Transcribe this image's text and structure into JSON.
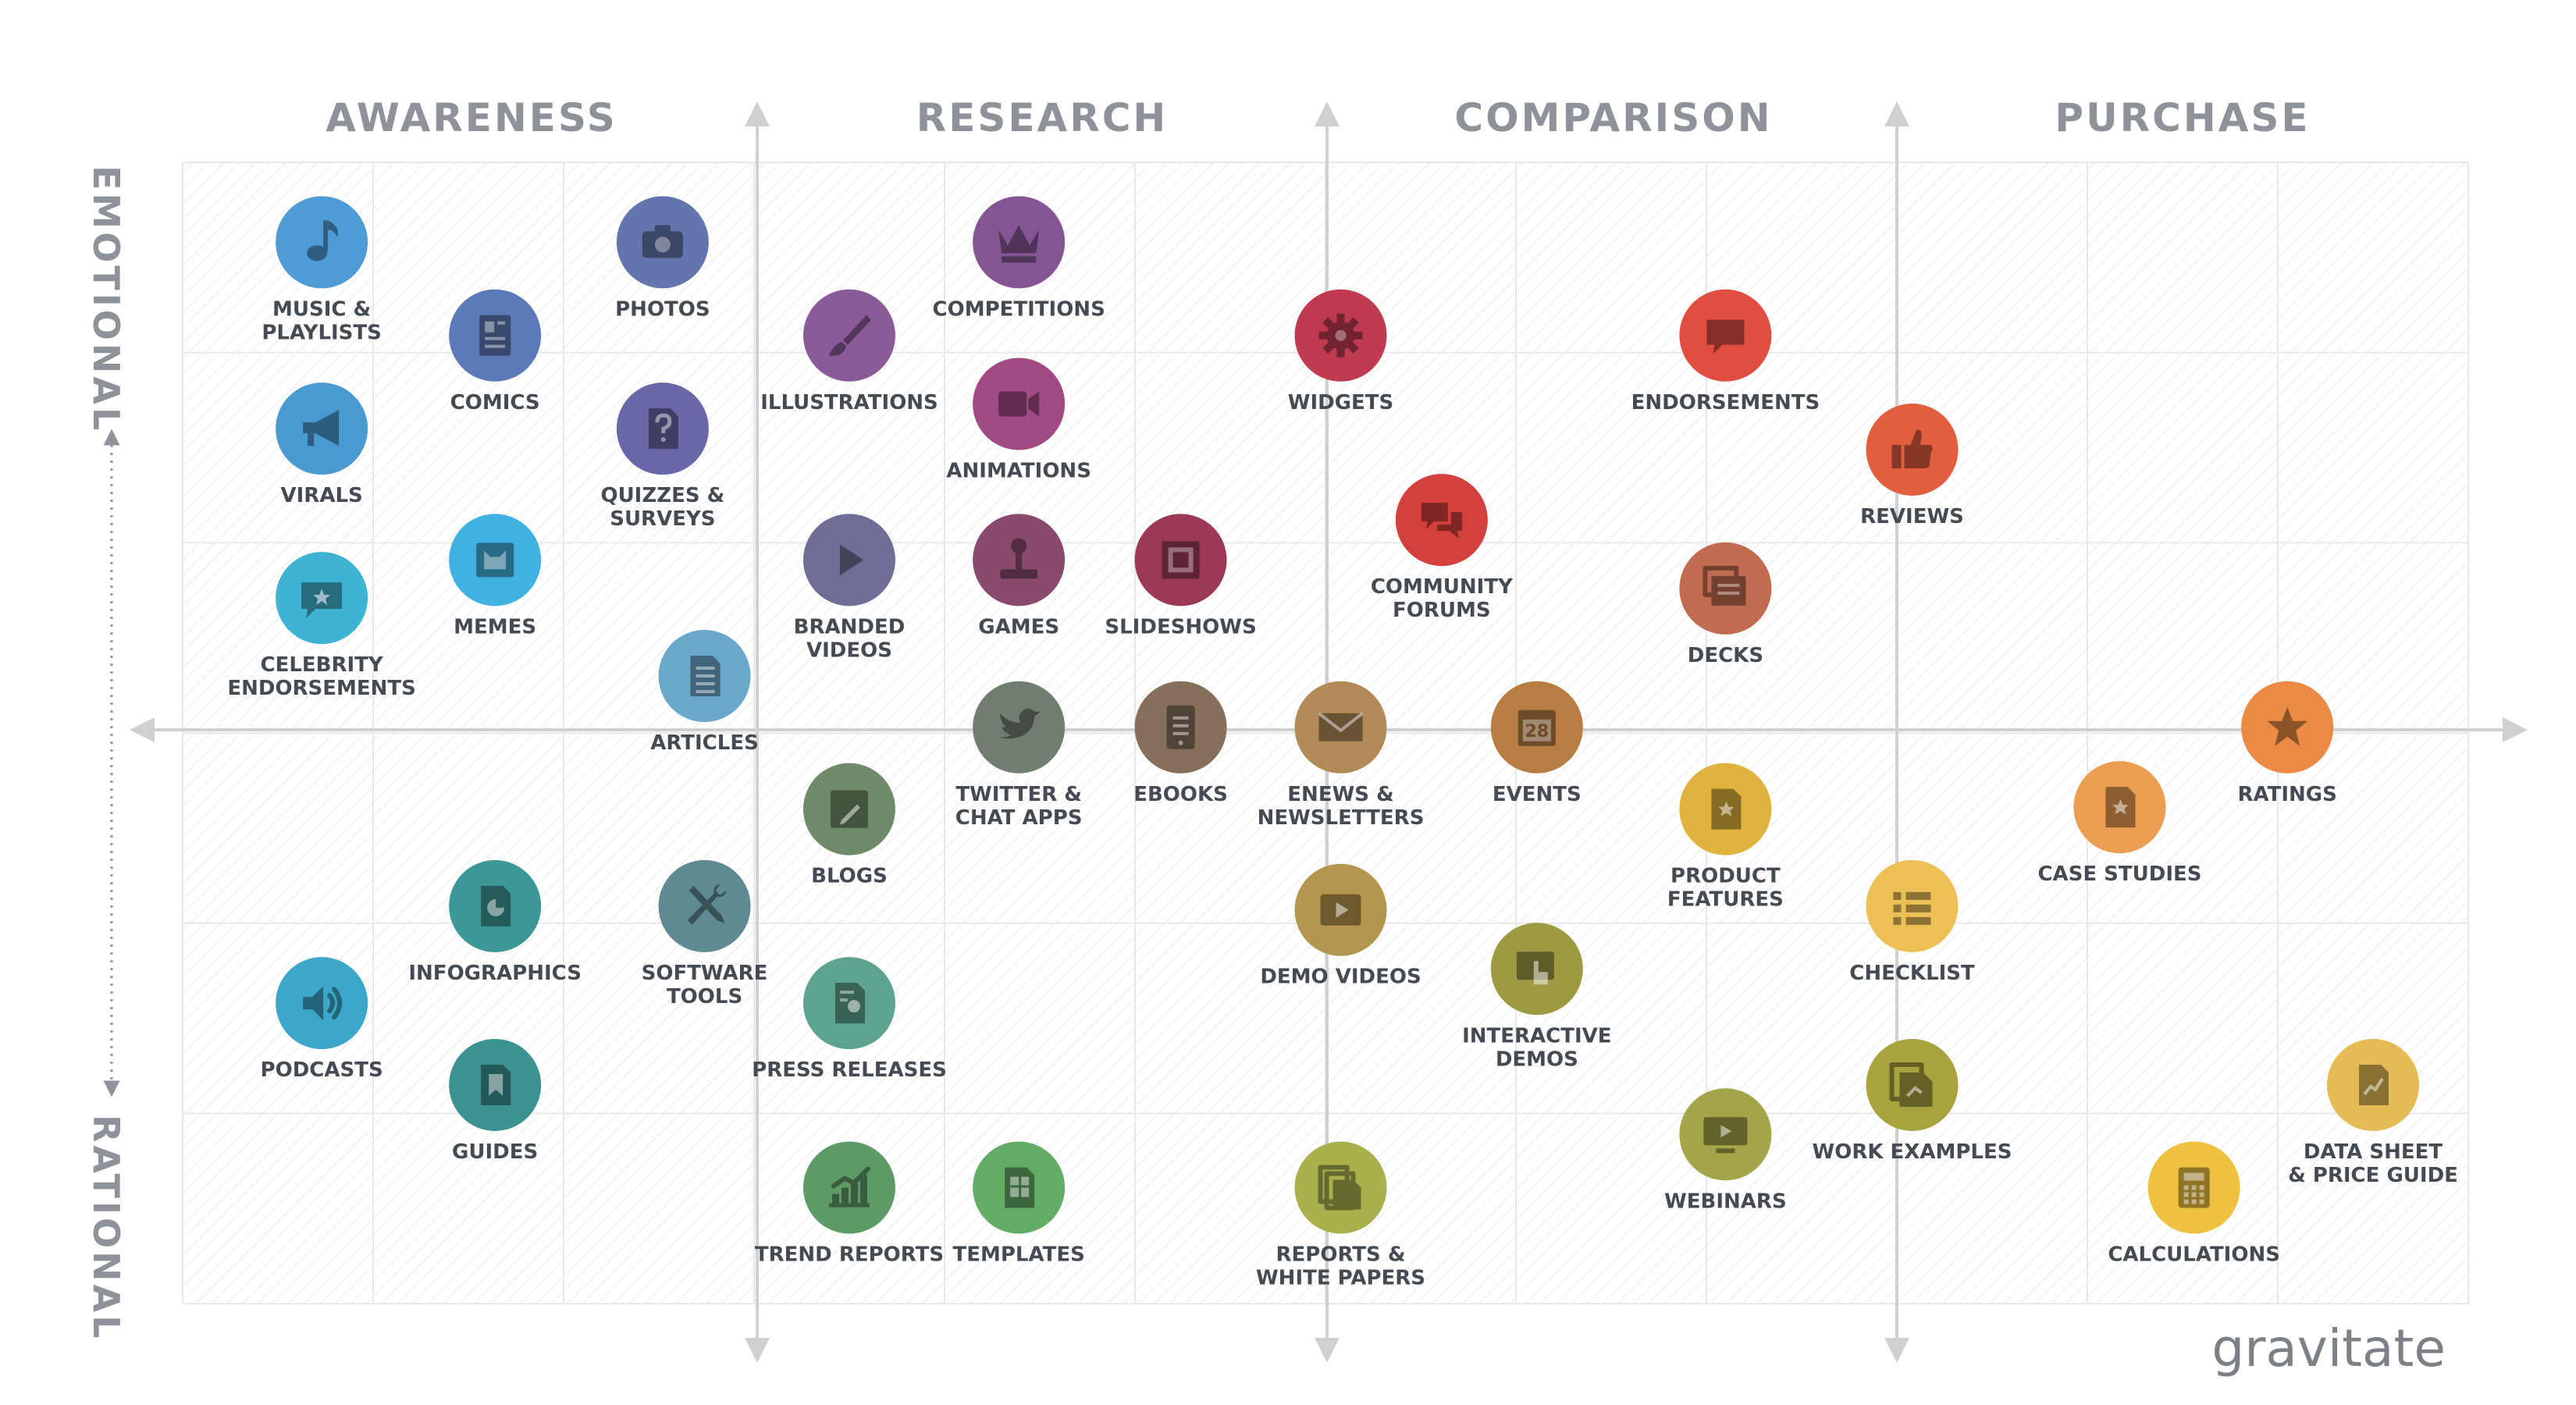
{
  "stages": [
    "AWARENESS",
    "RESEARCH",
    "COMPARISON",
    "PURCHASE"
  ],
  "axis": {
    "top": "EMOTIONAL",
    "bottom": "RATIONAL"
  },
  "brand": "gravitate",
  "colors": {
    "grid": "#ebebeb",
    "axis": "#cfd0d2",
    "heading": "#8d9399",
    "label": "#444b52",
    "brand": "#7c8187"
  },
  "items": [
    {
      "id": "music",
      "lines": [
        "MUSIC &",
        "PLAYLISTS"
      ],
      "color": "#4e9bd6",
      "icon": "music-note",
      "gx": 0.73,
      "gy": 0.42
    },
    {
      "id": "photos",
      "lines": [
        "PHOTOS"
      ],
      "color": "#6474ad",
      "icon": "camera",
      "gx": 2.52,
      "gy": 0.42
    },
    {
      "id": "competitions",
      "lines": [
        "COMPETITIONS"
      ],
      "color": "#845592",
      "icon": "crown",
      "gx": 4.39,
      "gy": 0.42
    },
    {
      "id": "comics",
      "lines": [
        "COMICS"
      ],
      "color": "#5d7ab8",
      "icon": "comic-page",
      "gx": 1.64,
      "gy": 0.91
    },
    {
      "id": "illustrations",
      "lines": [
        "ILLUSTRATIONS"
      ],
      "color": "#8b5a98",
      "icon": "paintbrush",
      "gx": 3.5,
      "gy": 0.91
    },
    {
      "id": "widgets",
      "lines": [
        "WIDGETS"
      ],
      "color": "#c03a50",
      "icon": "gear",
      "gx": 6.08,
      "gy": 0.91
    },
    {
      "id": "endorsements",
      "lines": [
        "ENDORSEMENTS"
      ],
      "color": "#e04e42",
      "icon": "speech-bubble",
      "gx": 8.1,
      "gy": 0.91
    },
    {
      "id": "virals",
      "lines": [
        "VIRALS"
      ],
      "color": "#4a9ad2",
      "icon": "megaphone",
      "gx": 0.73,
      "gy": 1.4
    },
    {
      "id": "quizzes",
      "lines": [
        "QUIZZES &",
        "SURVEYS"
      ],
      "color": "#6a67a8",
      "icon": "question-page",
      "gx": 2.52,
      "gy": 1.4
    },
    {
      "id": "animations",
      "lines": [
        "ANIMATIONS"
      ],
      "color": "#a14a84",
      "icon": "video-camera",
      "gx": 4.39,
      "gy": 1.27
    },
    {
      "id": "reviews",
      "lines": [
        "REVIEWS"
      ],
      "color": "#e15e3e",
      "icon": "thumbs-up",
      "gx": 9.08,
      "gy": 1.51
    },
    {
      "id": "community",
      "lines": [
        "COMMUNITY",
        "FORUMS"
      ],
      "color": "#d3403e",
      "icon": "chat-bubbles",
      "gx": 6.61,
      "gy": 1.88
    },
    {
      "id": "celebrity",
      "lines": [
        "CELEBRITY",
        "ENDORSEMENTS"
      ],
      "color": "#3fb4d2",
      "icon": "star-bubble",
      "gx": 0.73,
      "gy": 2.29
    },
    {
      "id": "memes",
      "lines": [
        "MEMES"
      ],
      "color": "#40b1e0",
      "icon": "cat-frame",
      "gx": 1.64,
      "gy": 2.09
    },
    {
      "id": "branded",
      "lines": [
        "BRANDED",
        "VIDEOS"
      ],
      "color": "#6e6e97",
      "icon": "play",
      "gx": 3.5,
      "gy": 2.09
    },
    {
      "id": "games",
      "lines": [
        "GAMES"
      ],
      "color": "#894a6d",
      "icon": "joystick",
      "gx": 4.39,
      "gy": 2.09
    },
    {
      "id": "slideshows",
      "lines": [
        "SLIDESHOWS"
      ],
      "color": "#9c3a56",
      "icon": "slides",
      "gx": 5.24,
      "gy": 2.09
    },
    {
      "id": "decks",
      "lines": [
        "DECKS"
      ],
      "color": "#c26b50",
      "icon": "stacked-slides",
      "gx": 8.1,
      "gy": 2.24
    },
    {
      "id": "articles",
      "lines": [
        "ARTICLES"
      ],
      "color": "#6aa8cb",
      "icon": "document",
      "gx": 2.74,
      "gy": 2.7
    },
    {
      "id": "twitter",
      "lines": [
        "TWITTER &",
        "CHAT APPS"
      ],
      "color": "#707d70",
      "icon": "bird",
      "gx": 4.39,
      "gy": 2.97
    },
    {
      "id": "ebooks",
      "lines": [
        "EBOOKS"
      ],
      "color": "#866f5b",
      "icon": "tablet",
      "gx": 5.24,
      "gy": 2.97
    },
    {
      "id": "enews",
      "lines": [
        "ENEWS &",
        "NEWSLETTERS"
      ],
      "color": "#b18a58",
      "icon": "envelope",
      "gx": 6.08,
      "gy": 2.97
    },
    {
      "id": "events",
      "lines": [
        "EVENTS"
      ],
      "color": "#b87d42",
      "icon": "calendar",
      "gx": 7.11,
      "gy": 2.97
    },
    {
      "id": "ratings",
      "lines": [
        "RATINGS"
      ],
      "color": "#ea8a44",
      "icon": "star",
      "gx": 11.05,
      "gy": 2.97
    },
    {
      "id": "blogs",
      "lines": [
        "BLOGS"
      ],
      "color": "#6f8a68",
      "icon": "pencil-box",
      "gx": 3.5,
      "gy": 3.4
    },
    {
      "id": "product",
      "lines": [
        "PRODUCT",
        "FEATURES"
      ],
      "color": "#e0b33e",
      "icon": "star-doc",
      "gx": 8.1,
      "gy": 3.4
    },
    {
      "id": "casestudies",
      "lines": [
        "CASE STUDIES"
      ],
      "color": "#eb9d52",
      "icon": "star-doc",
      "gx": 10.17,
      "gy": 3.39
    },
    {
      "id": "demovideos",
      "lines": [
        "DEMO VIDEOS"
      ],
      "color": "#b5964e",
      "icon": "play-screen",
      "gx": 6.08,
      "gy": 3.93
    },
    {
      "id": "checklist",
      "lines": [
        "CHECKLIST"
      ],
      "color": "#edc056",
      "icon": "list",
      "gx": 9.08,
      "gy": 3.91
    },
    {
      "id": "infographics",
      "lines": [
        "INFOGRAPHICS"
      ],
      "color": "#3c9897",
      "icon": "pie-doc",
      "gx": 1.64,
      "gy": 3.91
    },
    {
      "id": "software",
      "lines": [
        "SOFTWARE",
        "TOOLS"
      ],
      "color": "#5f8993",
      "icon": "tools",
      "gx": 2.74,
      "gy": 3.91
    },
    {
      "id": "interactive",
      "lines": [
        "INTERACTIVE",
        "DEMOS"
      ],
      "color": "#9d9a42",
      "icon": "touch-screen",
      "gx": 7.11,
      "gy": 4.24
    },
    {
      "id": "podcasts",
      "lines": [
        "PODCASTS"
      ],
      "color": "#3ca7c8",
      "icon": "speaker",
      "gx": 0.73,
      "gy": 4.42
    },
    {
      "id": "pressreleases",
      "lines": [
        "PRESS RELEASES"
      ],
      "color": "#5da390",
      "icon": "award-doc",
      "gx": 3.5,
      "gy": 4.42
    },
    {
      "id": "guides",
      "lines": [
        "GUIDES"
      ],
      "color": "#3c9191",
      "icon": "map-doc",
      "gx": 1.64,
      "gy": 4.85
    },
    {
      "id": "workexamples",
      "lines": [
        "WORK EXAMPLES"
      ],
      "color": "#a8a23f",
      "icon": "stacked-docs",
      "gx": 9.08,
      "gy": 4.85
    },
    {
      "id": "datasheet",
      "lines": [
        "DATA SHEET",
        "& PRICE GUIDE"
      ],
      "color": "#e4bb55",
      "icon": "chart-doc",
      "gx": 11.5,
      "gy": 4.85
    },
    {
      "id": "webinars",
      "lines": [
        "WEBINARS"
      ],
      "color": "#a4a548",
      "icon": "monitor",
      "gx": 8.1,
      "gy": 5.11
    },
    {
      "id": "trendreports",
      "lines": [
        "TREND REPORTS"
      ],
      "color": "#5d9a66",
      "icon": "bar-chart",
      "gx": 3.5,
      "gy": 5.39
    },
    {
      "id": "templates",
      "lines": [
        "TEMPLATES"
      ],
      "color": "#62ac66",
      "icon": "grid-doc",
      "gx": 4.39,
      "gy": 5.39
    },
    {
      "id": "reports",
      "lines": [
        "REPORTS &",
        "WHITE PAPERS"
      ],
      "color": "#a9b04c",
      "icon": "papers",
      "gx": 6.08,
      "gy": 5.39
    },
    {
      "id": "calculations",
      "lines": [
        "CALCULATIONS"
      ],
      "color": "#eec240",
      "icon": "calculator",
      "gx": 10.56,
      "gy": 5.39
    }
  ]
}
